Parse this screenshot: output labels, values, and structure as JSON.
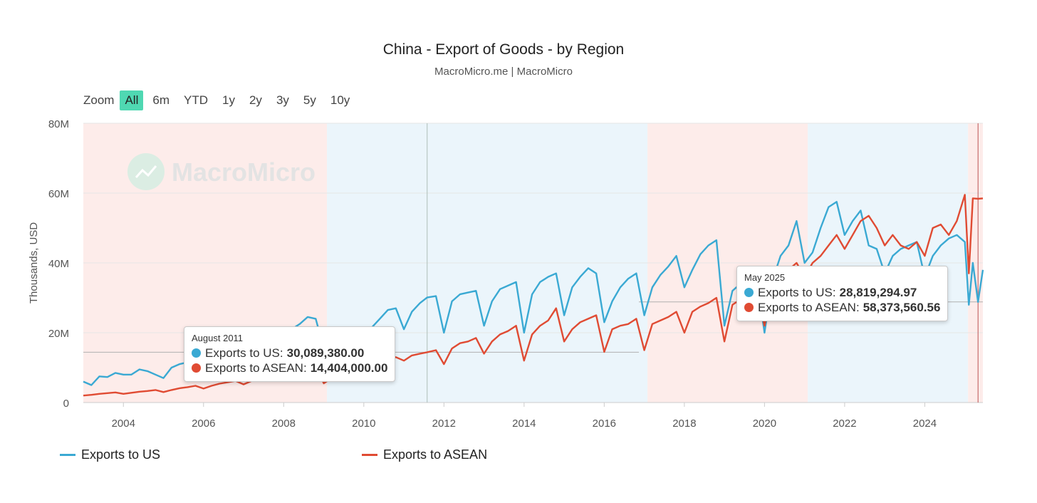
{
  "header": {
    "title": "China - Export of Goods - by Region",
    "subtitle": "MacroMicro.me | MacroMicro"
  },
  "zoom": {
    "label": "Zoom",
    "buttons": [
      "All",
      "6m",
      "YTD",
      "1y",
      "2y",
      "3y",
      "5y",
      "10y"
    ],
    "active": "All"
  },
  "watermark": "MacroMicro",
  "colors": {
    "us": "#3aa9d3",
    "asean": "#e04b33",
    "band_red": "#fdecea",
    "band_blue": "#ebf5fb",
    "zoom_active": "#4fd8b2"
  },
  "legend": [
    {
      "name": "Exports to US",
      "color": "#3aa9d3"
    },
    {
      "name": "Exports to ASEAN",
      "color": "#e04b33"
    }
  ],
  "tooltips": [
    {
      "date": "August 2011",
      "rows": [
        {
          "name": "Exports to US:",
          "value": "30,089,380.00",
          "color": "#3aa9d3"
        },
        {
          "name": "Exports to ASEAN:",
          "value": "14,404,000.00",
          "color": "#e04b33"
        }
      ]
    },
    {
      "date": "May 2025",
      "rows": [
        {
          "name": "Exports to US:",
          "value": "28,819,294.97",
          "color": "#3aa9d3"
        },
        {
          "name": "Exports to ASEAN:",
          "value": "58,373,560.56",
          "color": "#e04b33"
        }
      ]
    }
  ],
  "chart_data": {
    "type": "line",
    "title": "China - Export of Goods - by Region",
    "ylabel": "Thousands, USD",
    "xlabel": "",
    "xlim": [
      2003.0,
      2025.45
    ],
    "ylim": [
      0,
      80000000
    ],
    "y_ticks": [
      0,
      20000000,
      40000000,
      60000000,
      80000000
    ],
    "y_tick_labels": [
      "0",
      "20M",
      "40M",
      "60M",
      "80M"
    ],
    "x_ticks": [
      2004,
      2006,
      2008,
      2010,
      2012,
      2014,
      2016,
      2018,
      2020,
      2022,
      2024
    ],
    "x_tick_labels": [
      "2004",
      "2006",
      "2008",
      "2010",
      "2012",
      "2014",
      "2016",
      "2018",
      "2020",
      "2022",
      "2024"
    ],
    "grid": true,
    "legend_position": "bottom-left",
    "bands": [
      {
        "from": 2003.0,
        "to": 2009.08,
        "tone": "red"
      },
      {
        "from": 2009.08,
        "to": 2017.08,
        "tone": "blue"
      },
      {
        "from": 2017.08,
        "to": 2021.08,
        "tone": "red"
      },
      {
        "from": 2021.08,
        "to": 2025.08,
        "tone": "blue"
      },
      {
        "from": 2025.08,
        "to": 2025.45,
        "tone": "red"
      }
    ],
    "crosshairs": [
      2011.58,
      2025.33
    ],
    "series": [
      {
        "name": "Exports to US",
        "color": "#3aa9d3",
        "points": [
          [
            2003.0,
            6.0
          ],
          [
            2003.2,
            5.0
          ],
          [
            2003.4,
            7.5
          ],
          [
            2003.6,
            7.3
          ],
          [
            2003.8,
            8.5
          ],
          [
            2004.0,
            8.0
          ],
          [
            2004.2,
            8.0
          ],
          [
            2004.4,
            9.5
          ],
          [
            2004.6,
            9.0
          ],
          [
            2004.8,
            8.0
          ],
          [
            2005.0,
            7.0
          ],
          [
            2005.2,
            10.0
          ],
          [
            2005.4,
            11.0
          ],
          [
            2005.6,
            11.5
          ],
          [
            2005.8,
            12.5
          ],
          [
            2006.0,
            9.5
          ],
          [
            2006.2,
            13.5
          ],
          [
            2006.4,
            14.5
          ],
          [
            2006.6,
            15.0
          ],
          [
            2006.8,
            16.0
          ],
          [
            2007.0,
            14.0
          ],
          [
            2007.2,
            17.5
          ],
          [
            2007.4,
            19.0
          ],
          [
            2007.6,
            20.0
          ],
          [
            2007.8,
            20.5
          ],
          [
            2008.0,
            17.5
          ],
          [
            2008.2,
            21.0
          ],
          [
            2008.4,
            22.5
          ],
          [
            2008.6,
            24.5
          ],
          [
            2008.8,
            24.0
          ],
          [
            2009.0,
            15.5
          ],
          [
            2009.2,
            17.0
          ],
          [
            2009.4,
            18.5
          ],
          [
            2009.6,
            20.0
          ],
          [
            2009.8,
            21.0
          ],
          [
            2010.0,
            19.5
          ],
          [
            2010.2,
            21.5
          ],
          [
            2010.4,
            24.0
          ],
          [
            2010.6,
            26.5
          ],
          [
            2010.8,
            27.0
          ],
          [
            2011.0,
            21.0
          ],
          [
            2011.2,
            26.0
          ],
          [
            2011.4,
            28.5
          ],
          [
            2011.58,
            30.09
          ],
          [
            2011.8,
            30.5
          ],
          [
            2012.0,
            20.0
          ],
          [
            2012.2,
            29.0
          ],
          [
            2012.4,
            31.0
          ],
          [
            2012.6,
            31.5
          ],
          [
            2012.8,
            32.0
          ],
          [
            2013.0,
            22.0
          ],
          [
            2013.2,
            29.0
          ],
          [
            2013.4,
            32.5
          ],
          [
            2013.6,
            33.5
          ],
          [
            2013.8,
            34.5
          ],
          [
            2014.0,
            20.0
          ],
          [
            2014.2,
            31.0
          ],
          [
            2014.4,
            34.5
          ],
          [
            2014.6,
            36.0
          ],
          [
            2014.8,
            37.0
          ],
          [
            2015.0,
            25.0
          ],
          [
            2015.2,
            33.0
          ],
          [
            2015.4,
            36.0
          ],
          [
            2015.6,
            38.5
          ],
          [
            2015.8,
            37.0
          ],
          [
            2016.0,
            23.0
          ],
          [
            2016.2,
            29.0
          ],
          [
            2016.4,
            33.0
          ],
          [
            2016.6,
            35.5
          ],
          [
            2016.8,
            37.0
          ],
          [
            2017.0,
            25.0
          ],
          [
            2017.2,
            33.0
          ],
          [
            2017.4,
            36.5
          ],
          [
            2017.6,
            39.0
          ],
          [
            2017.8,
            42.0
          ],
          [
            2018.0,
            33.0
          ],
          [
            2018.2,
            38.0
          ],
          [
            2018.4,
            42.5
          ],
          [
            2018.6,
            45.0
          ],
          [
            2018.8,
            46.5
          ],
          [
            2019.0,
            22.0
          ],
          [
            2019.2,
            32.0
          ],
          [
            2019.4,
            34.0
          ],
          [
            2019.6,
            35.0
          ],
          [
            2019.8,
            36.0
          ],
          [
            2020.0,
            20.0
          ],
          [
            2020.2,
            35.0
          ],
          [
            2020.4,
            42.0
          ],
          [
            2020.6,
            45.0
          ],
          [
            2020.8,
            52.0
          ],
          [
            2021.0,
            40.0
          ],
          [
            2021.2,
            43.0
          ],
          [
            2021.4,
            50.0
          ],
          [
            2021.6,
            56.0
          ],
          [
            2021.8,
            57.5
          ],
          [
            2022.0,
            48.0
          ],
          [
            2022.2,
            52.0
          ],
          [
            2022.4,
            55.0
          ],
          [
            2022.6,
            45.0
          ],
          [
            2022.8,
            44.0
          ],
          [
            2023.0,
            37.0
          ],
          [
            2023.2,
            42.0
          ],
          [
            2023.4,
            44.0
          ],
          [
            2023.6,
            45.0
          ],
          [
            2023.8,
            46.0
          ],
          [
            2024.0,
            36.0
          ],
          [
            2024.2,
            42.0
          ],
          [
            2024.4,
            45.0
          ],
          [
            2024.6,
            47.0
          ],
          [
            2024.8,
            48.0
          ],
          [
            2025.0,
            46.0
          ],
          [
            2025.1,
            28.0
          ],
          [
            2025.2,
            40.0
          ],
          [
            2025.33,
            28.82
          ],
          [
            2025.45,
            38.0
          ]
        ]
      },
      {
        "name": "Exports to ASEAN",
        "color": "#e04b33",
        "points": [
          [
            2003.0,
            2.0
          ],
          [
            2003.2,
            2.2
          ],
          [
            2003.4,
            2.5
          ],
          [
            2003.6,
            2.7
          ],
          [
            2003.8,
            2.9
          ],
          [
            2004.0,
            2.5
          ],
          [
            2004.2,
            2.8
          ],
          [
            2004.4,
            3.1
          ],
          [
            2004.6,
            3.3
          ],
          [
            2004.8,
            3.6
          ],
          [
            2005.0,
            3.0
          ],
          [
            2005.2,
            3.6
          ],
          [
            2005.4,
            4.1
          ],
          [
            2005.6,
            4.4
          ],
          [
            2005.8,
            4.8
          ],
          [
            2006.0,
            4.0
          ],
          [
            2006.2,
            4.8
          ],
          [
            2006.4,
            5.4
          ],
          [
            2006.6,
            5.8
          ],
          [
            2006.8,
            6.2
          ],
          [
            2007.0,
            5.2
          ],
          [
            2007.2,
            6.2
          ],
          [
            2007.4,
            7.0
          ],
          [
            2007.6,
            7.6
          ],
          [
            2007.8,
            8.3
          ],
          [
            2008.0,
            6.8
          ],
          [
            2008.2,
            8.2
          ],
          [
            2008.4,
            9.3
          ],
          [
            2008.6,
            10.0
          ],
          [
            2008.8,
            10.5
          ],
          [
            2009.0,
            5.5
          ],
          [
            2009.2,
            7.0
          ],
          [
            2009.4,
            7.8
          ],
          [
            2009.6,
            8.8
          ],
          [
            2009.8,
            9.8
          ],
          [
            2010.0,
            7.5
          ],
          [
            2010.2,
            10.0
          ],
          [
            2010.4,
            11.5
          ],
          [
            2010.6,
            12.5
          ],
          [
            2010.8,
            13.0
          ],
          [
            2011.0,
            12.0
          ],
          [
            2011.2,
            13.5
          ],
          [
            2011.4,
            14.0
          ],
          [
            2011.58,
            14.4
          ],
          [
            2011.8,
            15.0
          ],
          [
            2012.0,
            11.0
          ],
          [
            2012.2,
            15.5
          ],
          [
            2012.4,
            17.0
          ],
          [
            2012.6,
            17.5
          ],
          [
            2012.8,
            18.5
          ],
          [
            2013.0,
            14.0
          ],
          [
            2013.2,
            17.5
          ],
          [
            2013.4,
            19.5
          ],
          [
            2013.6,
            20.5
          ],
          [
            2013.8,
            22.0
          ],
          [
            2014.0,
            12.0
          ],
          [
            2014.2,
            19.5
          ],
          [
            2014.4,
            22.0
          ],
          [
            2014.6,
            23.5
          ],
          [
            2014.8,
            27.0
          ],
          [
            2015.0,
            17.5
          ],
          [
            2015.2,
            21.0
          ],
          [
            2015.4,
            23.0
          ],
          [
            2015.6,
            24.0
          ],
          [
            2015.8,
            25.0
          ],
          [
            2016.0,
            14.5
          ],
          [
            2016.2,
            21.0
          ],
          [
            2016.4,
            22.0
          ],
          [
            2016.6,
            22.5
          ],
          [
            2016.8,
            24.0
          ],
          [
            2017.0,
            15.0
          ],
          [
            2017.2,
            22.5
          ],
          [
            2017.4,
            23.5
          ],
          [
            2017.6,
            24.5
          ],
          [
            2017.8,
            26.0
          ],
          [
            2018.0,
            20.0
          ],
          [
            2018.2,
            26.0
          ],
          [
            2018.4,
            27.5
          ],
          [
            2018.6,
            28.5
          ],
          [
            2018.8,
            30.0
          ],
          [
            2019.0,
            17.5
          ],
          [
            2019.2,
            28.0
          ],
          [
            2019.4,
            29.5
          ],
          [
            2019.6,
            31.0
          ],
          [
            2019.8,
            33.0
          ],
          [
            2020.0,
            22.0
          ],
          [
            2020.2,
            33.0
          ],
          [
            2020.4,
            36.0
          ],
          [
            2020.6,
            38.0
          ],
          [
            2020.8,
            40.0
          ],
          [
            2021.0,
            36.0
          ],
          [
            2021.2,
            40.0
          ],
          [
            2021.4,
            42.0
          ],
          [
            2021.6,
            45.0
          ],
          [
            2021.8,
            48.0
          ],
          [
            2022.0,
            44.0
          ],
          [
            2022.2,
            48.0
          ],
          [
            2022.4,
            52.0
          ],
          [
            2022.6,
            53.5
          ],
          [
            2022.8,
            50.0
          ],
          [
            2023.0,
            45.0
          ],
          [
            2023.2,
            48.0
          ],
          [
            2023.4,
            45.0
          ],
          [
            2023.6,
            44.0
          ],
          [
            2023.8,
            46.0
          ],
          [
            2024.0,
            42.0
          ],
          [
            2024.2,
            50.0
          ],
          [
            2024.4,
            51.0
          ],
          [
            2024.6,
            48.0
          ],
          [
            2024.8,
            52.0
          ],
          [
            2025.0,
            59.5
          ],
          [
            2025.1,
            37.0
          ],
          [
            2025.2,
            58.5
          ],
          [
            2025.33,
            58.37
          ],
          [
            2025.45,
            58.5
          ]
        ]
      }
    ]
  }
}
